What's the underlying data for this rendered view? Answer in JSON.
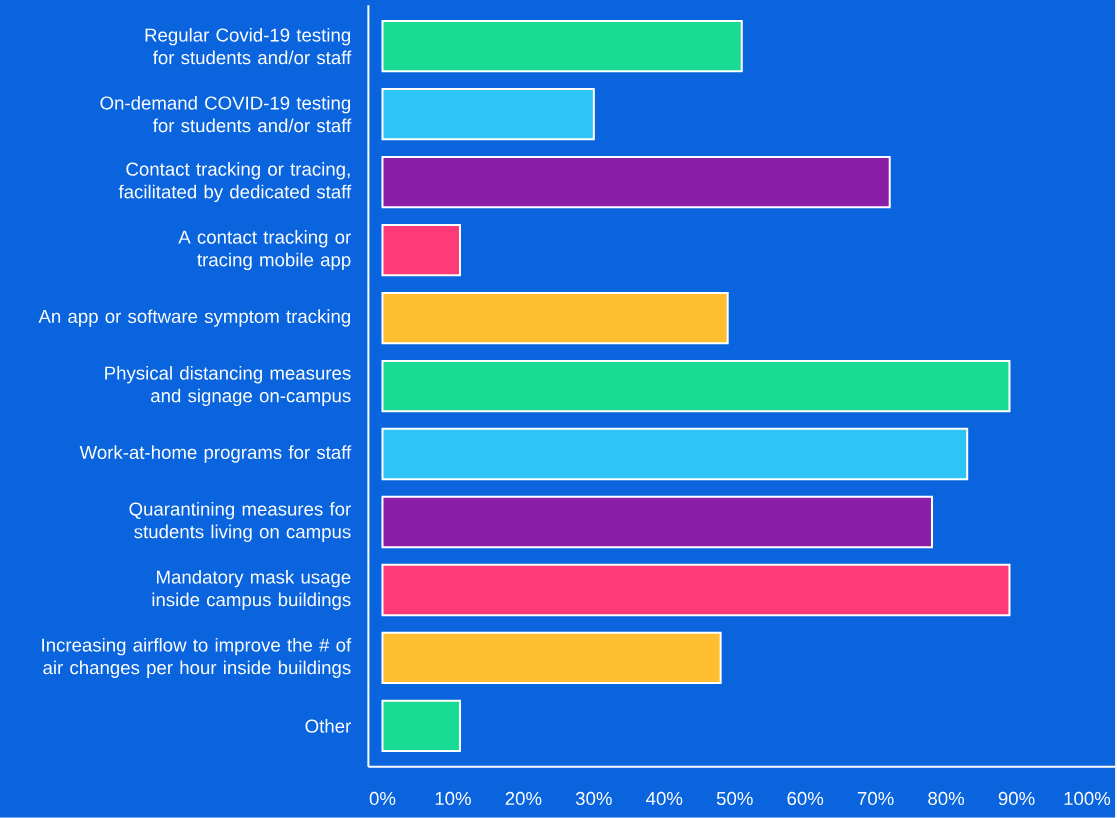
{
  "chart_data": {
    "type": "bar",
    "orientation": "horizontal",
    "categories": [
      "Regular  Covid-19 testing for students and/or staff",
      "On-demand COVID-19 testing for students and/or staff",
      "Contact tracking or tracing, facilitated by dedicated staff",
      "A contact tracking or tracing mobile app",
      "An app or software symptom tracking",
      "Physical distancing measures and signage on-campus",
      "Work-at-home programs for staff",
      "Quarantining measures for students living on campus",
      "Mandatory mask usage inside campus buildings",
      "Increasing airflow to improve the # of air changes per hour inside buildings",
      "Other"
    ],
    "values": [
      51,
      30,
      72,
      11,
      49,
      89,
      83,
      78,
      89,
      48,
      11
    ],
    "colors": [
      "#1adb94",
      "#2ec4f5",
      "#8a1ea6",
      "#ff3a78",
      "#ffbd30",
      "#1adb94",
      "#2ec4f5",
      "#8a1ea6",
      "#ff3a78",
      "#ffbd30",
      "#1adb94"
    ],
    "xlim": [
      -2,
      104
    ],
    "xticks": [
      {
        "value": 0,
        "label": "0%"
      },
      {
        "value": 10,
        "label": "10%"
      },
      {
        "value": 20,
        "label": "20%"
      },
      {
        "value": 30,
        "label": "30%"
      },
      {
        "value": 40,
        "label": "40%"
      },
      {
        "value": 50,
        "label": "50%"
      },
      {
        "value": 60,
        "label": "60%"
      },
      {
        "value": 70,
        "label": "70%"
      },
      {
        "value": 80,
        "label": "80%"
      },
      {
        "value": 90,
        "label": "90%"
      },
      {
        "value": 100,
        "label": "100%"
      }
    ],
    "grid": false
  }
}
